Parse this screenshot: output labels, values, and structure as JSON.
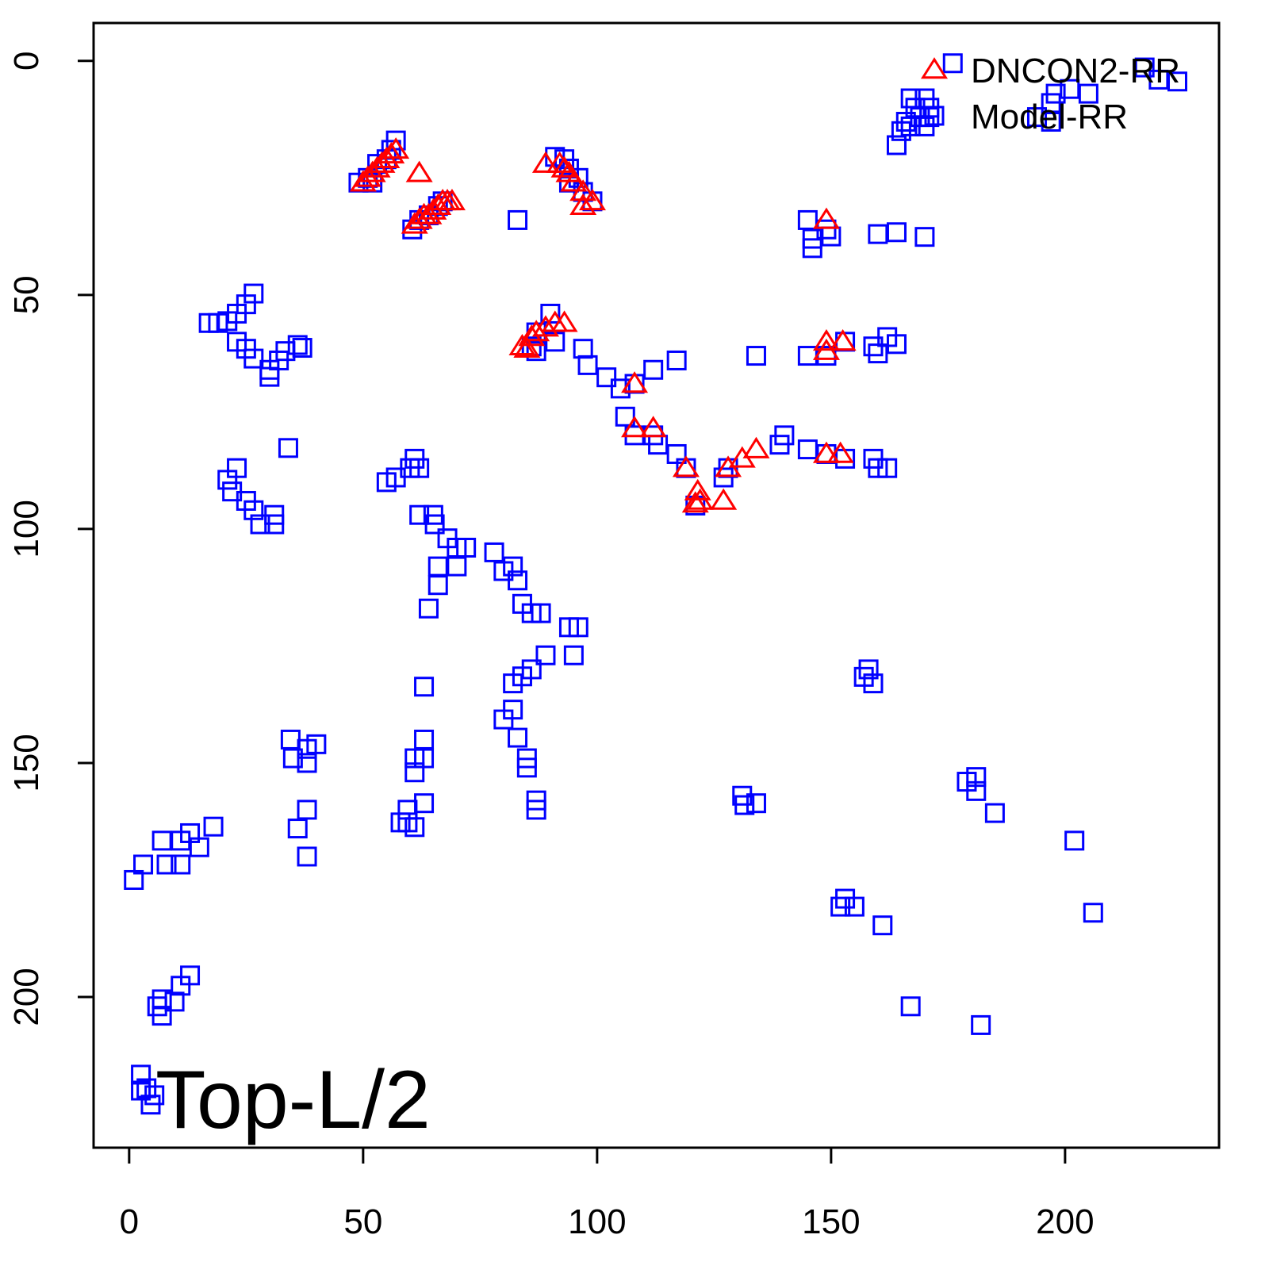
{
  "chart_data": {
    "type": "scatter",
    "annotation": "Top-L/2",
    "xlim": [
      -7.6,
      232.9
    ],
    "ylim": [
      232.2,
      -8.1
    ],
    "xticks": [
      0,
      50,
      100,
      150,
      200
    ],
    "yticks": [
      0,
      50,
      100,
      150,
      200
    ],
    "legend": "top-right",
    "series": [
      {
        "name": "DNCON2-RR",
        "color": "#ff0000",
        "marker": "triangle",
        "x": [
          50,
          51,
          52,
          53,
          54,
          55,
          56,
          57,
          62,
          61,
          62,
          63,
          64,
          65,
          66,
          67,
          68,
          69,
          89,
          92,
          93,
          94,
          95,
          97,
          99,
          97,
          149,
          84,
          85,
          86,
          87,
          89,
          91,
          93,
          108,
          108,
          112,
          119,
          121.5,
          122,
          121,
          127,
          128,
          131,
          134,
          149,
          149,
          152.5,
          149,
          152
        ],
        "values": [
          26,
          25,
          24,
          23,
          22,
          21,
          20,
          19,
          24,
          35,
          34,
          33,
          33,
          32,
          31,
          30,
          30,
          30,
          22,
          22,
          23,
          24,
          26,
          28,
          30,
          31,
          34,
          61,
          61.5,
          59,
          58,
          57,
          56,
          56,
          69,
          78.5,
          78.5,
          87,
          92,
          94,
          94.6,
          94,
          87,
          85,
          83,
          60,
          62,
          60,
          84,
          84
        ]
      },
      {
        "name": "Model-RR",
        "color": "#0000ff",
        "marker": "square",
        "x": [
          176,
          167,
          168,
          170,
          171,
          171,
          169,
          166,
          165,
          167,
          170,
          164,
          217,
          220,
          224,
          205,
          201,
          198,
          197,
          194,
          197,
          57,
          56,
          55,
          53,
          51,
          49,
          52,
          60.5,
          62,
          64,
          66,
          67,
          83,
          91,
          93,
          94,
          96,
          97,
          99,
          94,
          145,
          146,
          146,
          150,
          149,
          160,
          164,
          170,
          26.6,
          25,
          23,
          21,
          19,
          17,
          23,
          25,
          26.6,
          30,
          32,
          33.4,
          36,
          37,
          30,
          34,
          90,
          87,
          86,
          87,
          91,
          97,
          98,
          102,
          105,
          108,
          112,
          117,
          106,
          108,
          112,
          113,
          117,
          119,
          121,
          127,
          128,
          134,
          145,
          149,
          153,
          159,
          160,
          162,
          164,
          140,
          139,
          145,
          149,
          153,
          159,
          160,
          162,
          23,
          21,
          22,
          25,
          26.6,
          31,
          31,
          28,
          61,
          60,
          57,
          55,
          62,
          62,
          65,
          65.3,
          68,
          70,
          72,
          70,
          66,
          66,
          64,
          78,
          80,
          82,
          83,
          84,
          86,
          88,
          94,
          96,
          95,
          89,
          86,
          84,
          82,
          82,
          80,
          83,
          85,
          85,
          87,
          87,
          63,
          34.5,
          35,
          38,
          40,
          38,
          38,
          36,
          38,
          63,
          63,
          61,
          61,
          63,
          59.5,
          59.5,
          58,
          61,
          1,
          3,
          7,
          8,
          11,
          11,
          13,
          15,
          18,
          11,
          13,
          7,
          6,
          9.7,
          7,
          2.5,
          3.7,
          4.6,
          5.4,
          2.5,
          158,
          159,
          157,
          131,
          134,
          131.5,
          181,
          179,
          181,
          185,
          202,
          206,
          153,
          155,
          152,
          161,
          167,
          182
        ],
        "values": [
          0.5,
          8,
          10,
          8,
          10,
          12,
          12,
          13,
          15,
          14,
          14,
          18,
          1.4,
          4,
          4.4,
          7,
          6,
          7,
          9,
          12,
          13,
          17,
          19,
          21,
          22,
          25,
          26,
          26,
          36,
          34,
          33,
          31,
          30,
          34,
          20.5,
          21,
          23,
          25,
          28,
          30,
          26,
          34,
          38,
          40,
          37.5,
          36,
          37,
          36.6,
          37.6,
          49.7,
          52,
          54,
          55.6,
          56,
          56,
          60,
          61.5,
          63.6,
          66,
          64,
          62,
          60.7,
          61.3,
          67.5,
          82.7,
          54,
          58,
          61,
          62,
          60,
          61.5,
          65,
          67.6,
          70,
          69,
          66,
          64,
          76,
          80,
          80,
          82,
          84,
          87,
          95,
          89,
          87,
          63,
          63,
          63,
          60,
          61,
          62.5,
          59,
          60.5,
          80,
          82,
          83,
          84,
          85,
          85,
          87,
          87,
          87,
          89.5,
          92,
          94,
          96,
          97,
          99,
          99,
          85,
          87,
          89,
          90,
          87,
          97,
          97,
          99,
          102,
          104,
          104,
          108,
          108,
          112,
          117,
          105,
          109,
          108,
          111,
          116,
          118,
          118,
          121,
          121,
          127,
          127,
          130,
          131.5,
          133,
          138.6,
          140.7,
          144.6,
          149,
          151,
          158,
          160,
          133.7,
          145,
          149,
          147,
          146,
          150,
          160,
          164,
          170,
          145,
          149,
          149,
          152,
          158.6,
          160,
          162.7,
          162.7,
          163.7,
          175,
          171.7,
          166.6,
          171.7,
          166.6,
          171.7,
          165,
          168,
          163.6,
          197.6,
          195.4,
          200.5,
          202,
          201,
          204,
          216.6,
          219.5,
          223,
          221,
          220,
          130,
          133,
          131.6,
          157,
          158.6,
          159,
          153,
          154,
          156,
          160.7,
          166.6,
          182,
          179,
          180.7,
          180.7,
          184.7,
          202,
          206
        ]
      }
    ]
  }
}
